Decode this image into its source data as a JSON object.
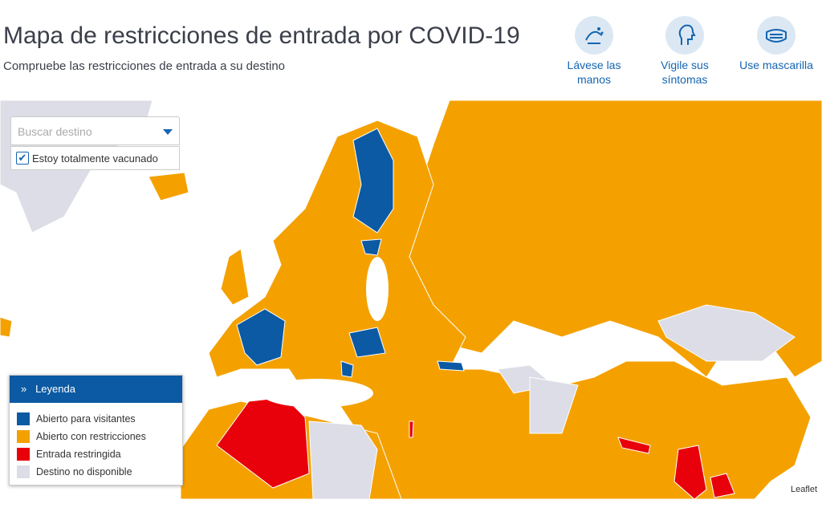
{
  "header": {
    "title": "Mapa de restricciones de entrada por COVID-19",
    "subtitle": "Compruebe las restricciones de entrada a su destino"
  },
  "tips": [
    {
      "label": "Lávese las manos"
    },
    {
      "label": "Vigile sus síntomas"
    },
    {
      "label": "Use mascarilla"
    }
  ],
  "search": {
    "placeholder": "Buscar destino"
  },
  "filter": {
    "label": "Estoy totalmente vacunado",
    "checked": true
  },
  "legend": {
    "title": "Leyenda",
    "items": [
      {
        "label": "Abierto para visitantes",
        "color": "#0b5aa3"
      },
      {
        "label": "Abierto con restricciones",
        "color": "#f4a100"
      },
      {
        "label": "Entrada restringida",
        "color": "#e8000b"
      },
      {
        "label": "Destino no disponible",
        "color": "#dcdde6"
      }
    ]
  },
  "attribution": "Leaflet"
}
